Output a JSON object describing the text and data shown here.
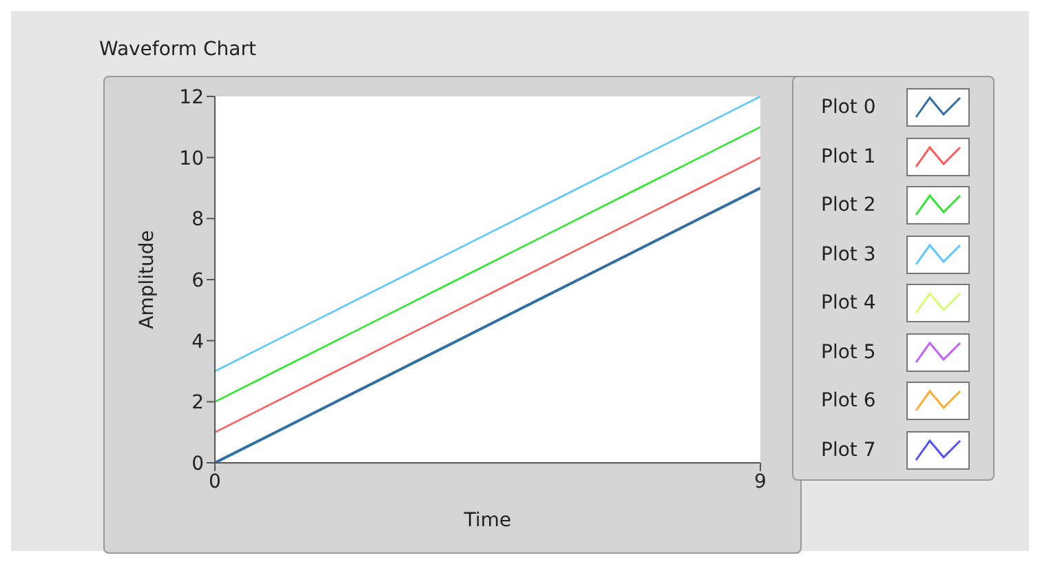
{
  "chart_data": {
    "type": "line",
    "title": "Waveform Chart",
    "xlabel": "Time",
    "ylabel": "Amplitude",
    "x": [
      0,
      1,
      2,
      3,
      4,
      5,
      6,
      7,
      8,
      9
    ],
    "series": [
      {
        "name": "Plot 0",
        "color": "#2f6fa3",
        "values": [
          0,
          1,
          2,
          3,
          4,
          5,
          6,
          7,
          8,
          9
        ]
      },
      {
        "name": "Plot 1",
        "color": "#ff5a5a",
        "values": [
          1,
          2,
          3,
          4,
          5,
          6,
          7,
          8,
          9,
          10
        ]
      },
      {
        "name": "Plot 2",
        "color": "#2ee82e",
        "values": [
          2,
          3,
          4,
          5,
          6,
          7,
          8,
          9,
          10,
          11
        ]
      },
      {
        "name": "Plot 3",
        "color": "#5ac8ff",
        "values": [
          3,
          4,
          5,
          6,
          7,
          8,
          9,
          10,
          11,
          12
        ]
      },
      {
        "name": "Plot 4",
        "color": "#d4ff70",
        "values": [
          null,
          null,
          null,
          null,
          null,
          null,
          null,
          null,
          null,
          null
        ]
      },
      {
        "name": "Plot 5",
        "color": "#c060ff",
        "values": [
          null,
          null,
          null,
          null,
          null,
          null,
          null,
          null,
          null,
          null
        ]
      },
      {
        "name": "Plot 6",
        "color": "#ffaa30",
        "values": [
          null,
          null,
          null,
          null,
          null,
          null,
          null,
          null,
          null,
          null
        ]
      },
      {
        "name": "Plot 7",
        "color": "#5050ff",
        "values": [
          null,
          null,
          null,
          null,
          null,
          null,
          null,
          null,
          null,
          null
        ]
      }
    ],
    "xlim": [
      0,
      9
    ],
    "xticks": [
      0,
      9
    ],
    "ylim": [
      0,
      12
    ],
    "yticks": [
      0,
      2,
      4,
      6,
      8,
      10,
      12
    ],
    "grid": false,
    "legend": "right",
    "marker": "none",
    "line_style": "solid"
  }
}
